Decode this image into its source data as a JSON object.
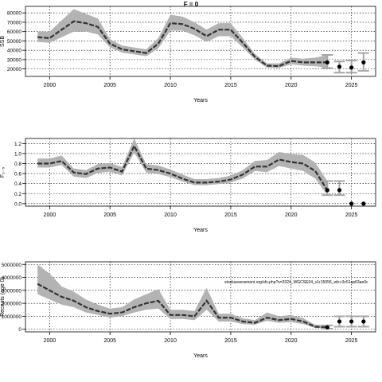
{
  "figure_title": "F = 0",
  "colors": {
    "band": "#b3b3b3",
    "line": "#333333",
    "point": "#000000",
    "grid": "#000000",
    "proj_bar": "#a6a6a6"
  },
  "chart_data": [
    {
      "type": "line",
      "ylabel": "SSB",
      "xlabel": "Years",
      "xlim": [
        1998,
        2027
      ],
      "ylim": [
        12000,
        87000
      ],
      "xticks": [
        2000,
        2005,
        2010,
        2015,
        2020,
        2025
      ],
      "yticks": [
        20000,
        30000,
        40000,
        50000,
        60000,
        70000,
        80000
      ],
      "ytick_labels": [
        "20000",
        "30000",
        "40000",
        "50000",
        "60000",
        "70000",
        "80000"
      ],
      "grid": true,
      "x": [
        1999,
        2000,
        2001,
        2002,
        2003,
        2004,
        2005,
        2006,
        2007,
        2008,
        2009,
        2010,
        2011,
        2012,
        2013,
        2014,
        2015,
        2016,
        2017,
        2018,
        2019,
        2020,
        2021,
        2022,
        2023
      ],
      "y": [
        54000,
        53000,
        62000,
        71000,
        69000,
        65000,
        47000,
        41000,
        39000,
        37000,
        47000,
        69000,
        68000,
        63000,
        55000,
        62000,
        62000,
        48000,
        33000,
        23500,
        23000,
        28500,
        27000,
        27000,
        27000
      ],
      "lower": [
        49000,
        48000,
        54000,
        60000,
        60000,
        57000,
        43000,
        37500,
        35500,
        33500,
        42000,
        61000,
        61000,
        56000,
        49000,
        55000,
        55000,
        43000,
        30000,
        21500,
        21000,
        25000,
        23500,
        23000,
        21500
      ],
      "upper": [
        60000,
        60000,
        72000,
        84000,
        79000,
        74000,
        52000,
        45000,
        43000,
        41000,
        53000,
        78000,
        76000,
        70000,
        62000,
        69000,
        69000,
        53000,
        36000,
        26000,
        26000,
        32000,
        31000,
        32000,
        35000
      ],
      "projection": {
        "x": [
          2023,
          2024,
          2025,
          2026
        ],
        "y": [
          27000,
          22500,
          21500,
          27000
        ],
        "lower": [
          21000,
          16000,
          16000,
          18000
        ],
        "upper": [
          35000,
          28000,
          29000,
          37000
        ]
      }
    },
    {
      "type": "line",
      "ylabel": "F₂₋₅",
      "xlabel": "Years",
      "xlim": [
        1998,
        2027
      ],
      "ylim": [
        -0.05,
        1.3
      ],
      "xticks": [
        2000,
        2005,
        2010,
        2015,
        2020,
        2025
      ],
      "yticks": [
        0.0,
        0.2,
        0.4,
        0.6,
        0.8,
        1.0,
        1.2
      ],
      "ytick_labels": [
        "0.0",
        "0.2",
        "0.4",
        "0.6",
        "0.8",
        "1.0",
        "1.2"
      ],
      "grid": true,
      "x": [
        1999,
        2000,
        2001,
        2002,
        2003,
        2004,
        2005,
        2006,
        2007,
        2008,
        2009,
        2010,
        2011,
        2012,
        2013,
        2014,
        2015,
        2016,
        2017,
        2018,
        2019,
        2020,
        2021,
        2022,
        2023
      ],
      "y": [
        0.8,
        0.8,
        0.85,
        0.62,
        0.59,
        0.7,
        0.72,
        0.64,
        1.15,
        0.7,
        0.67,
        0.6,
        0.5,
        0.42,
        0.42,
        0.44,
        0.48,
        0.58,
        0.74,
        0.74,
        0.88,
        0.83,
        0.8,
        0.65,
        0.27
      ],
      "lower": [
        0.72,
        0.72,
        0.77,
        0.54,
        0.51,
        0.61,
        0.64,
        0.56,
        1.02,
        0.62,
        0.59,
        0.53,
        0.44,
        0.37,
        0.37,
        0.39,
        0.42,
        0.5,
        0.65,
        0.63,
        0.75,
        0.7,
        0.65,
        0.5,
        0.17
      ],
      "upper": [
        0.9,
        0.9,
        0.96,
        0.7,
        0.67,
        0.79,
        0.81,
        0.73,
        1.3,
        0.79,
        0.76,
        0.68,
        0.58,
        0.49,
        0.49,
        0.51,
        0.56,
        0.67,
        0.85,
        0.87,
        1.03,
        0.99,
        0.97,
        0.82,
        0.45
      ],
      "projection": {
        "x": [
          2023,
          2024,
          2025,
          2026
        ],
        "y": [
          0.27,
          0.27,
          0.0,
          0.0
        ],
        "lower": [
          0.17,
          0.17,
          0.0,
          0.0
        ],
        "upper": [
          0.45,
          0.45,
          0.0,
          0.0
        ]
      }
    },
    {
      "type": "line",
      "ylabel": "Recruits (age 0)",
      "xlabel": "Years",
      "xlim": [
        1998,
        2027
      ],
      "ylim": [
        -200000,
        5200000
      ],
      "xticks": [
        2000,
        2005,
        2010,
        2015,
        2020,
        2025
      ],
      "yticks": [
        0,
        1000000,
        2000000,
        3000000,
        4000000,
        5000000
      ],
      "ytick_labels": [
        "0",
        "1000000",
        "2000000",
        "3000000",
        "4000000",
        "5000000"
      ],
      "grid": true,
      "x": [
        1999,
        2000,
        2001,
        2002,
        2003,
        2004,
        2005,
        2006,
        2007,
        2008,
        2009,
        2010,
        2011,
        2012,
        2013,
        2014,
        2015,
        2016,
        2017,
        2018,
        2019,
        2020,
        2021,
        2022,
        2023
      ],
      "y": [
        3500000,
        3000000,
        2500000,
        2200000,
        1700000,
        1400000,
        1200000,
        1300000,
        1700000,
        2000000,
        2200000,
        1100000,
        1100000,
        1000000,
        2200000,
        900000,
        900000,
        600000,
        500000,
        900000,
        700000,
        800000,
        600000,
        200000,
        150000
      ],
      "lower": [
        2700000,
        2300000,
        1900000,
        1700000,
        1300000,
        1100000,
        900000,
        1000000,
        1300000,
        1500000,
        1600000,
        800000,
        800000,
        700000,
        1500000,
        600000,
        600000,
        400000,
        350000,
        650000,
        500000,
        550000,
        400000,
        100000,
        50000
      ],
      "upper": [
        5000000,
        4300000,
        3300000,
        2900000,
        2300000,
        1900000,
        1600000,
        1700000,
        2300000,
        2700000,
        3100000,
        1500000,
        1500000,
        1400000,
        3200000,
        1200000,
        1200000,
        850000,
        700000,
        1300000,
        1000000,
        1100000,
        850000,
        350000,
        300000
      ],
      "projection": {
        "x": [
          2023,
          2024,
          2025,
          2026
        ],
        "y": [
          150000,
          600000,
          600000,
          600000
        ],
        "lower": [
          50000,
          200000,
          200000,
          200000
        ],
        "upper": [
          300000,
          1000000,
          1000000,
          1000000
        ]
      }
    }
  ],
  "watermark_url": "stockassessment.org/sfs.php?s=2024_WGCSE04_v1r15056_wb:c3c51ap63ae0c"
}
